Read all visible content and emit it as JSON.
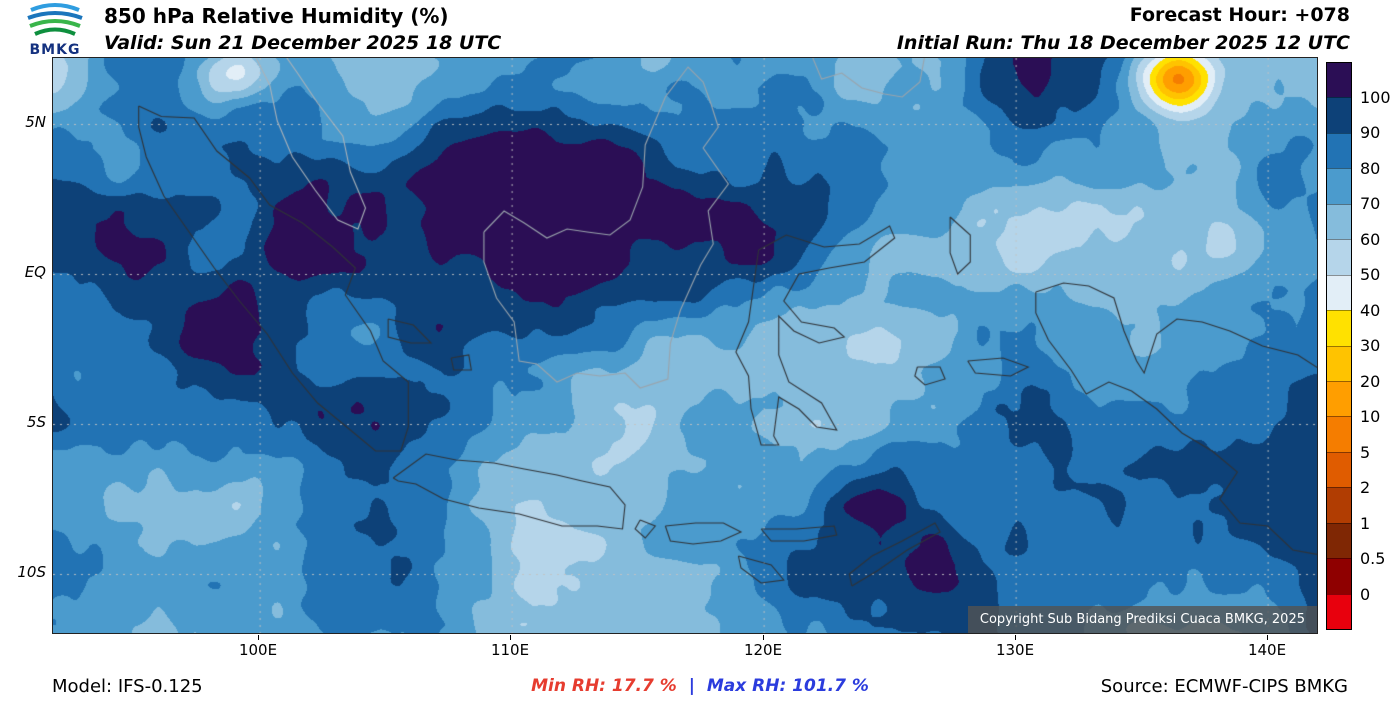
{
  "header": {
    "logo_text": "BMKG",
    "title": "850 hPa Relative Humidity (%)",
    "valid": "Valid: Sun 21 December 2025 18 UTC",
    "forecast_hour": "Forecast Hour: +078",
    "initial_run": "Initial Run: Thu 18 December 2025 12 UTC"
  },
  "map": {
    "lat_labels": [
      "5N",
      "EQ",
      "5S",
      "10S"
    ],
    "lon_labels": [
      "100E",
      "110E",
      "120E",
      "130E",
      "140E"
    ],
    "copyright": "Copyright Sub Bidang Prediksi Cuaca BMKG, 2025"
  },
  "colorbar": {
    "tick_labels": [
      "100",
      "90",
      "80",
      "70",
      "60",
      "50",
      "40",
      "30",
      "20",
      "10",
      "5",
      "2",
      "1",
      "0.5",
      "0"
    ],
    "colors": [
      "#2b0e55",
      "#0d4178",
      "#2273b4",
      "#4b9bcd",
      "#85bcdc",
      "#b5d5ea",
      "#e2eef7",
      "#ffe100",
      "#ffc300",
      "#ff9e00",
      "#f57d00",
      "#e05c00",
      "#b13d02",
      "#7f2704",
      "#8f0000",
      "#e8000d"
    ]
  },
  "footer": {
    "model": "Model: IFS-0.125",
    "min_rh": "Min RH:  17.7 %",
    "separator": "|",
    "max_rh": "Max RH: 101.7 %",
    "source": "Source: ECMWF-CIPS BMKG",
    "min_color": "#e63c2f",
    "max_color": "#2b3cdd"
  }
}
